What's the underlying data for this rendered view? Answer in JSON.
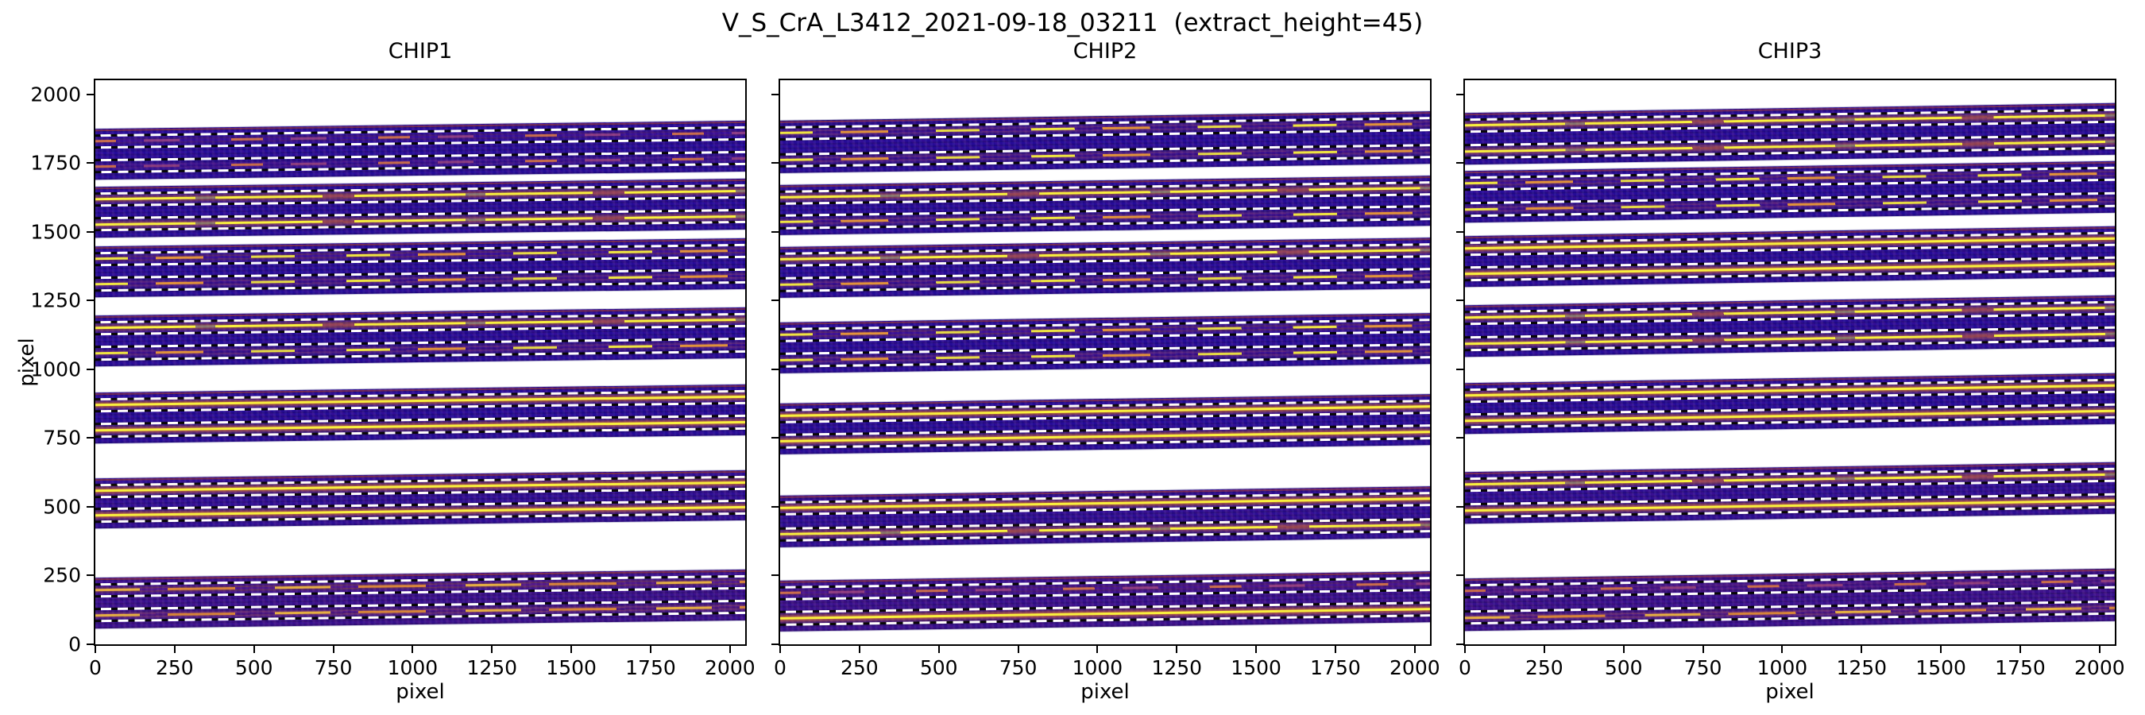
{
  "figure": {
    "suptitle": "V_S_CrA_L3412_2021-09-18_03211  (extract_height=45)",
    "background_color": "#ffffff",
    "text_color": "#000000"
  },
  "chart_data": {
    "type": "heatmap",
    "description": "Echelle spectrograph order-trace diagnostic plot: three detector chips shown as images (plasma colormap). Each chip displays 7 cropped order bands on a dark indigo background; each band contains two spectral traces (bright yellow/orange streaks) with white dashed lines marking the extraction window of half-height 22.5 px (extract_height=45). Traces tilt slightly upward toward larger x.",
    "xlabel": "pixel",
    "ylabel": "pixel",
    "xlim": [
      0,
      2048
    ],
    "ylim": [
      0,
      2052
    ],
    "xticks": [
      0,
      250,
      500,
      750,
      1000,
      1250,
      1500,
      1750,
      2000
    ],
    "yticks": [
      0,
      250,
      500,
      750,
      1000,
      1250,
      1500,
      1750,
      2000
    ],
    "extract_height": 45,
    "extract_half_height": 22.5,
    "band_margin_above_trace": 46,
    "band_margin_below_trace": 48,
    "panels": [
      {
        "title": "CHIP1",
        "rise_across_chip": 30,
        "bands": [
          {
            "bg": "#250b97",
            "traces": [
              {
                "y": 1828,
                "style": "faint"
              },
              {
                "y": 1738,
                "style": "faint"
              }
            ]
          },
          {
            "bg": "#250b97",
            "traces": [
              {
                "y": 1618,
                "style": "bright"
              },
              {
                "y": 1528,
                "style": "bright"
              }
            ]
          },
          {
            "bg": "#250b97",
            "traces": [
              {
                "y": 1400,
                "style": "patchy"
              },
              {
                "y": 1308,
                "style": "patchy"
              }
            ]
          },
          {
            "bg": "#250b97",
            "traces": [
              {
                "y": 1150,
                "style": "bright"
              },
              {
                "y": 1058,
                "style": "patchy"
              }
            ]
          },
          {
            "bg": "#250b97",
            "traces": [
              {
                "y": 870,
                "style": "solid"
              },
              {
                "y": 778,
                "style": "solid"
              }
            ]
          },
          {
            "bg": "#2c0d93",
            "traces": [
              {
                "y": 558,
                "style": "solid"
              },
              {
                "y": 470,
                "style": "solid"
              }
            ]
          },
          {
            "bg": "#360f8c",
            "traces": [
              {
                "y": 196,
                "style": "medium"
              },
              {
                "y": 106,
                "style": "medium"
              }
            ]
          }
        ]
      },
      {
        "title": "CHIP2",
        "rise_across_chip": 34,
        "bands": [
          {
            "bg": "#250b97",
            "traces": [
              {
                "y": 1860,
                "style": "patchy"
              },
              {
                "y": 1762,
                "style": "patchy"
              }
            ]
          },
          {
            "bg": "#250b97",
            "traces": [
              {
                "y": 1624,
                "style": "bright"
              },
              {
                "y": 1535,
                "style": "patchy"
              }
            ]
          },
          {
            "bg": "#250b97",
            "traces": [
              {
                "y": 1398,
                "style": "bright"
              },
              {
                "y": 1306,
                "style": "patchy"
              }
            ]
          },
          {
            "bg": "#250b97",
            "traces": [
              {
                "y": 1124,
                "style": "patchy"
              },
              {
                "y": 1032,
                "style": "patchy"
              }
            ]
          },
          {
            "bg": "#250b97",
            "traces": [
              {
                "y": 830,
                "style": "solid"
              },
              {
                "y": 738,
                "style": "solid"
              }
            ]
          },
          {
            "bg": "#2c0d93",
            "traces": [
              {
                "y": 494,
                "style": "solid"
              },
              {
                "y": 399,
                "style": "bright"
              }
            ]
          },
          {
            "bg": "#360f8c",
            "traces": [
              {
                "y": 186,
                "style": "faint"
              },
              {
                "y": 94,
                "style": "solid"
              }
            ]
          }
        ]
      },
      {
        "title": "CHIP3",
        "rise_across_chip": 36,
        "bands": [
          {
            "bg": "#250b97",
            "traces": [
              {
                "y": 1886,
                "style": "bright"
              },
              {
                "y": 1792,
                "style": "bright"
              }
            ]
          },
          {
            "bg": "#250b97",
            "traces": [
              {
                "y": 1676,
                "style": "patchy"
              },
              {
                "y": 1582,
                "style": "patchy"
              }
            ]
          },
          {
            "bg": "#250b97",
            "traces": [
              {
                "y": 1440,
                "style": "solid"
              },
              {
                "y": 1348,
                "style": "solid"
              }
            ]
          },
          {
            "bg": "#250b97",
            "traces": [
              {
                "y": 1188,
                "style": "bright"
              },
              {
                "y": 1094,
                "style": "bright"
              }
            ]
          },
          {
            "bg": "#250b97",
            "traces": [
              {
                "y": 904,
                "style": "solid"
              },
              {
                "y": 812,
                "style": "solid"
              }
            ]
          },
          {
            "bg": "#2c0d93",
            "traces": [
              {
                "y": 580,
                "style": "bright"
              },
              {
                "y": 486,
                "style": "solid"
              }
            ]
          },
          {
            "bg": "#360f8c",
            "traces": [
              {
                "y": 192,
                "style": "faint"
              },
              {
                "y": 96,
                "style": "medium"
              }
            ]
          }
        ]
      }
    ],
    "colors": {
      "band_background": "#250b97",
      "trace_core": "#f9ef3e",
      "trace_glow": "#f28220",
      "extraction_line_dash": "#ffffff",
      "extraction_line_base": "#070707",
      "axes_edge": "#000000",
      "figure_background": "#ffffff"
    },
    "legend": null,
    "grid": false
  }
}
